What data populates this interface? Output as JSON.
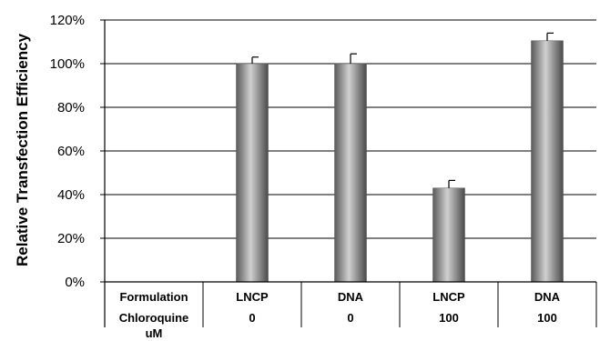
{
  "chart_data": {
    "type": "bar",
    "ylabel": "Relative Transfection Efficiency",
    "ylim": [
      0,
      120
    ],
    "yticks": [
      "0%",
      "20%",
      "40%",
      "60%",
      "80%",
      "100%",
      "120%"
    ],
    "grid": true,
    "categories": [
      "",
      "LNCP|0",
      "DNA|0",
      "LNCP|100",
      "DNA|100"
    ],
    "values": [
      null,
      100,
      100,
      43,
      110.5
    ],
    "errors": [
      null,
      3,
      4.5,
      3.5,
      3.5
    ],
    "bar_color": "#8a8a8a",
    "table": {
      "row_headers": [
        "Formulation",
        "Chloroquine\nuM"
      ],
      "formulation": [
        "LNCP",
        "DNA",
        "LNCP",
        "DNA"
      ],
      "chloroquine": [
        "0",
        "0",
        "100",
        "100"
      ]
    }
  }
}
